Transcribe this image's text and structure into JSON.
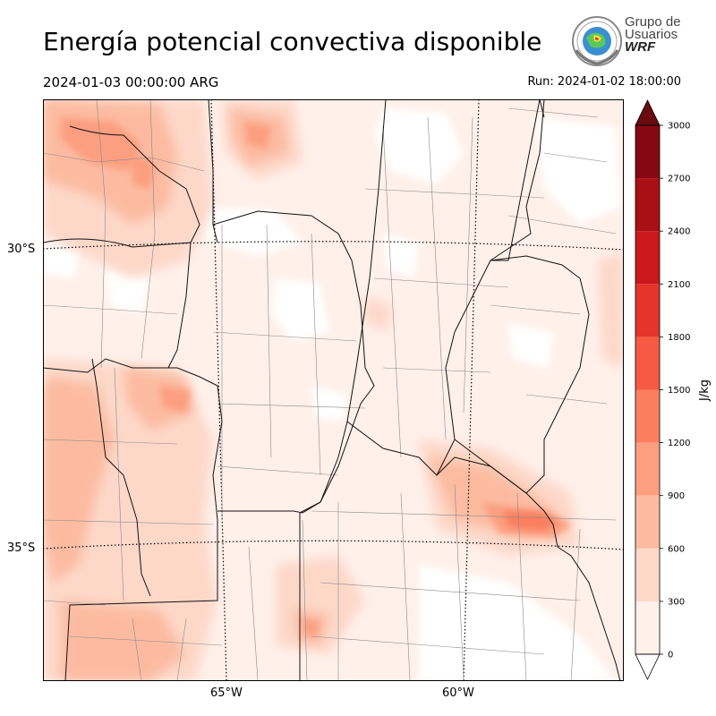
{
  "title": "Energía potencial convectiva disponible",
  "valid_time": "2024-01-03 00:00:00 ARG",
  "run_time": "Run: 2024-01-02 18:00:00",
  "logo": {
    "line1": "Grupo de",
    "line2": "Usuarios",
    "line3": "WRF"
  },
  "map": {
    "lat_labels": [
      "30°S",
      "35°S"
    ],
    "lon_labels": [
      "65°W",
      "60°W"
    ]
  },
  "colorbar": {
    "unit": "J/kg",
    "levels": [
      0,
      300,
      600,
      900,
      1200,
      1500,
      1800,
      2100,
      2400,
      2700,
      3000
    ],
    "colors": [
      "#fff0ea",
      "#fdd8c9",
      "#fcbba1",
      "#fc9f80",
      "#fb7f5f",
      "#f45b42",
      "#e4342c",
      "#ca181d",
      "#aa0f15",
      "#860811"
    ],
    "over_color": "#6a0b10",
    "under_color": "#ffffff"
  }
}
